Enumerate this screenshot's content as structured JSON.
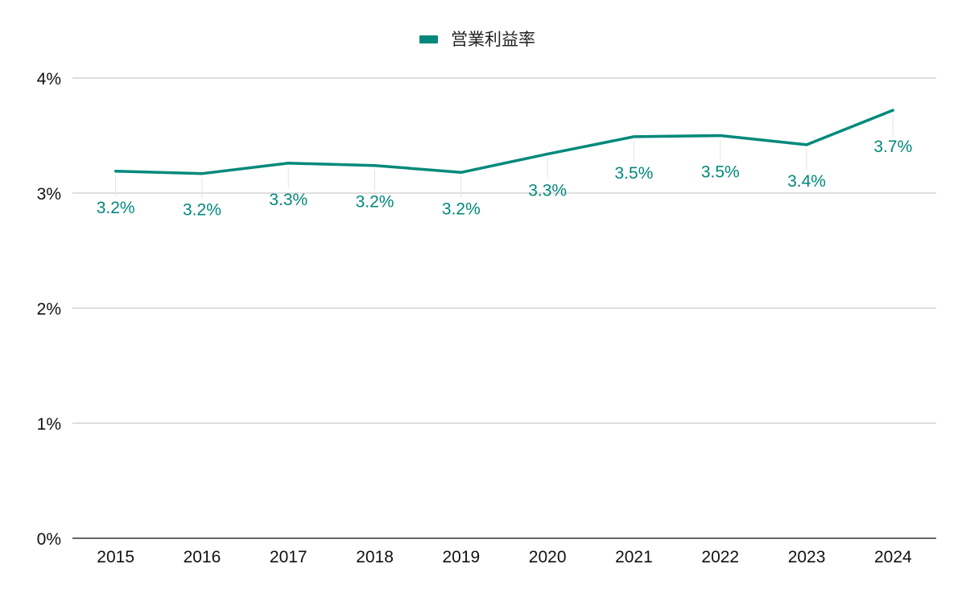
{
  "chart_data": {
    "type": "line",
    "title": "",
    "xlabel": "",
    "ylabel": "",
    "categories": [
      "2015",
      "2016",
      "2017",
      "2018",
      "2019",
      "2020",
      "2021",
      "2022",
      "2023",
      "2024"
    ],
    "series": [
      {
        "name": "営業利益率",
        "color": "#00897b",
        "values": [
          3.19,
          3.17,
          3.26,
          3.24,
          3.18,
          3.34,
          3.49,
          3.5,
          3.42,
          3.72
        ],
        "labels": [
          "3.2%",
          "3.2%",
          "3.3%",
          "3.2%",
          "3.2%",
          "3.3%",
          "3.5%",
          "3.5%",
          "3.4%",
          "3.7%"
        ]
      }
    ],
    "ylim": [
      0,
      4
    ],
    "yticks": [
      0,
      1,
      2,
      3,
      4
    ],
    "ytick_labels": [
      "0%",
      "1%",
      "2%",
      "3%",
      "4%"
    ],
    "grid": true,
    "legend_position": "top-center",
    "colors": {
      "line": "#00897b",
      "grid": "#cccccc",
      "axis": "#333333",
      "text": "#111111"
    }
  }
}
